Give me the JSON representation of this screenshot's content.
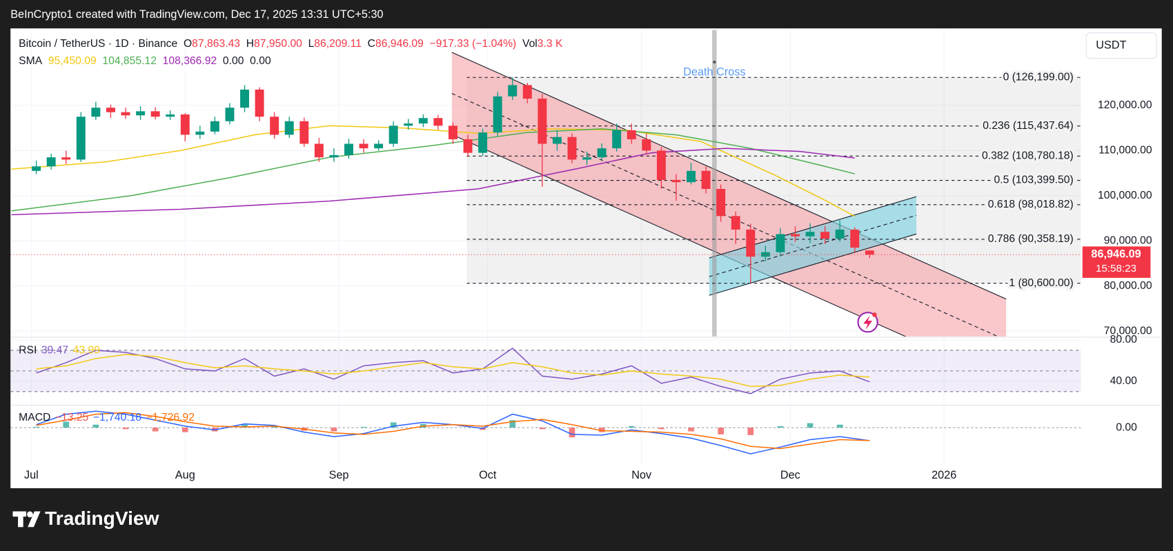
{
  "top_bar": {
    "text": "BeInCrypto1 created with TradingView.com, Dec 17, 2025 13:31 UTC+5:30"
  },
  "footer": {
    "logo_text": "TradingView"
  },
  "chart_data": [
    {
      "type": "candlestick",
      "title": "Bitcoin / TetherUS · 1D · Binance",
      "currency": "USDT",
      "up_color": "#089981",
      "down_color": "#f23645",
      "ohlc_legend": [
        {
          "key": "O",
          "text": "87,863.43"
        },
        {
          "key": "H",
          "text": "87,950.00"
        },
        {
          "key": "L",
          "text": "86,209.11"
        },
        {
          "key": "C",
          "text": "86,946.09"
        }
      ],
      "change": "−917.33 (−1.04%)",
      "volume": {
        "key": "Vol",
        "text": "3.3 K"
      },
      "xlim": [
        -4.2,
        211.6
      ],
      "xticks": [
        {
          "value": 0,
          "label": "Jul"
        },
        {
          "value": 31,
          "label": "Aug"
        },
        {
          "value": 62,
          "label": "Sep"
        },
        {
          "value": 92,
          "label": "Oct"
        },
        {
          "value": 123,
          "label": "Nov"
        },
        {
          "value": 153,
          "label": "Dec"
        },
        {
          "value": 184,
          "label": "2026"
        }
      ],
      "ylim": [
        68840,
        136720
      ],
      "yticks": [
        {
          "value": 70000,
          "label": "70,000.00"
        },
        {
          "value": 80000,
          "label": "80,000.00"
        },
        {
          "value": 90000,
          "label": "90,000.00"
        },
        {
          "value": 100000,
          "label": "100,000.00"
        },
        {
          "value": 110000,
          "label": "110,000.00"
        },
        {
          "value": 120000,
          "label": "120,000.00"
        }
      ],
      "grid": true,
      "x": [
        1,
        4,
        7,
        10,
        13,
        16,
        19,
        22,
        25,
        28,
        31,
        34,
        37,
        40,
        43,
        46,
        49,
        52,
        55,
        58,
        61,
        64,
        67,
        70,
        73,
        76,
        79,
        82,
        85,
        88,
        91,
        94,
        97,
        100,
        103,
        106,
        109,
        112,
        115,
        118,
        121,
        124,
        127,
        130,
        133,
        136,
        139,
        142,
        145,
        148,
        151,
        154,
        157,
        160,
        163,
        166,
        169
      ],
      "open": [
        105500,
        106500,
        108500,
        108000,
        117500,
        119500,
        118500,
        117800,
        118700,
        117500,
        118000,
        113500,
        114200,
        116500,
        119500,
        123500,
        117500,
        113500,
        116500,
        111500,
        108500,
        109000,
        111500,
        110500,
        111500,
        115500,
        116000,
        117200,
        115500,
        112500,
        109500,
        114000,
        122000,
        124500,
        121500,
        111500,
        113000,
        108000,
        108500,
        110500,
        114500,
        112500,
        110000,
        103500,
        103000,
        105500,
        101500,
        95500,
        92500,
        86500,
        87500,
        91500,
        91000,
        92000,
        90500,
        92500,
        87863.43
      ],
      "high": [
        107800,
        109300,
        110000,
        118500,
        120800,
        120200,
        119500,
        119800,
        119600,
        118900,
        118300,
        115500,
        117500,
        120500,
        124500,
        124000,
        118500,
        117500,
        117300,
        112800,
        110500,
        112600,
        112500,
        112300,
        116500,
        117000,
        118000,
        117900,
        116200,
        113500,
        114800,
        123000,
        126199,
        125000,
        122500,
        114500,
        113800,
        109800,
        111600,
        116000,
        116000,
        113800,
        110800,
        104800,
        107300,
        106500,
        102500,
        96500,
        93800,
        88900,
        92800,
        93200,
        93900,
        93300,
        94500,
        93000,
        87950
      ],
      "low": [
        104800,
        105800,
        107000,
        107500,
        116800,
        117200,
        117000,
        116800,
        116900,
        116800,
        112000,
        112600,
        113600,
        115800,
        118500,
        116500,
        112600,
        112800,
        110800,
        107500,
        107500,
        108200,
        109500,
        110000,
        110800,
        114600,
        115200,
        114600,
        111500,
        108600,
        108800,
        113200,
        121200,
        120500,
        102000,
        110000,
        107200,
        106800,
        107800,
        109800,
        111500,
        109200,
        101500,
        98900,
        102500,
        100500,
        94200,
        89300,
        80600,
        85500,
        86500,
        89800,
        89500,
        89300,
        89800,
        87500,
        86209.11
      ],
      "close": [
        106500,
        108500,
        108000,
        117500,
        119500,
        118500,
        117800,
        118700,
        117500,
        118000,
        113500,
        114200,
        116500,
        119500,
        123500,
        117500,
        113500,
        116500,
        111500,
        108500,
        109000,
        111500,
        110500,
        111500,
        115500,
        116000,
        117200,
        115500,
        112500,
        109500,
        114000,
        122000,
        124500,
        121500,
        111500,
        113000,
        108000,
        108500,
        110500,
        114500,
        112500,
        110000,
        103500,
        103000,
        105500,
        101500,
        95500,
        92500,
        86500,
        87500,
        91500,
        91000,
        92000,
        90500,
        92500,
        88500,
        86946.09
      ],
      "sma": {
        "label": "SMA",
        "extra_labels": [
          "0.00",
          "0.00"
        ],
        "lines": [
          {
            "color": "#f2c811",
            "x": [
              -4,
              15,
              30,
              45,
              60,
              75,
              90,
              105,
              120,
              135,
              150,
              160,
              166
            ],
            "values": [
              105900,
              107500,
              110000,
              113500,
              115500,
              115000,
              113800,
              114800,
              114500,
              112000,
              104500,
              99000,
              95450.09
            ],
            "value_label": "95,450.09"
          },
          {
            "color": "#4caf50",
            "x": [
              -4,
              20,
              40,
              60,
              80,
              100,
              115,
              130,
              145,
              160,
              166
            ],
            "values": [
              96650,
              100000,
              104000,
              108500,
              111000,
              114000,
              114800,
              113500,
              110500,
              106500,
              104855.12
            ],
            "value_label": "104,855.12"
          },
          {
            "color": "#9c27b0",
            "x": [
              -4,
              30,
              60,
              90,
              110,
              125,
              140,
              155,
              166
            ],
            "values": [
              95800,
              97000,
              98800,
              101500,
              106000,
              109500,
              110500,
              109800,
              108366.92
            ],
            "value_label": "108,366.92"
          }
        ]
      },
      "fib_levels": [
        {
          "value": 126199,
          "label": "0 (126,199.00)"
        },
        {
          "value": 115437.64,
          "label": "0.236 (115,437.64)"
        },
        {
          "value": 108780.18,
          "label": "0.382 (108,780.18)"
        },
        {
          "value": 103399.5,
          "label": "0.5 (103,399.50)"
        },
        {
          "value": 98018.82,
          "label": "0.618 (98,018.82)"
        },
        {
          "value": 90358.19,
          "label": "0.786 (90,358.19)"
        },
        {
          "value": 80600,
          "label": "1 (80,600.00)"
        }
      ],
      "death_cross": {
        "label": "Death Cross"
      },
      "last_price": {
        "value": 86946.09,
        "label": "86,946.09",
        "countdown": "15:58:23"
      }
    },
    {
      "type": "line",
      "label": "RSI",
      "xlim": [
        -4.2,
        211.6
      ],
      "ylim": [
        17.5,
        82
      ],
      "yticks": [
        {
          "value": 80,
          "label": "80.00"
        },
        {
          "value": 40,
          "label": "40.00"
        }
      ],
      "bands": [
        70,
        50,
        30
      ],
      "x": [
        1,
        7,
        13,
        19,
        25,
        31,
        37,
        43,
        49,
        55,
        61,
        67,
        73,
        79,
        85,
        91,
        97,
        103,
        109,
        115,
        121,
        127,
        133,
        139,
        145,
        151,
        157,
        163,
        169
      ],
      "series": [
        {
          "color": "#7e57c2",
          "values": [
            48,
            58,
            70,
            68,
            62,
            52,
            50,
            62,
            45,
            52,
            42,
            55,
            58,
            60,
            48,
            52,
            72,
            45,
            42,
            47,
            55,
            38,
            44,
            35,
            28,
            42,
            48,
            50,
            39.47
          ],
          "value_label": "39.47"
        },
        {
          "color": "#f2c811",
          "values": [
            52,
            55,
            62,
            66,
            64,
            58,
            53,
            55,
            52,
            50,
            47,
            50,
            54,
            58,
            54,
            52,
            58,
            54,
            48,
            46,
            50,
            47,
            45,
            42,
            35,
            36,
            42,
            46,
            43.99
          ],
          "value_label": "43.99"
        }
      ]
    },
    {
      "type": "line",
      "label": "MACD",
      "xlim": [
        -4.2,
        211.6
      ],
      "ylim": [
        -5000,
        3000
      ],
      "yticks": [
        {
          "value": 0,
          "label": "0.00"
        }
      ],
      "x": [
        1,
        7,
        13,
        19,
        25,
        31,
        37,
        43,
        49,
        55,
        61,
        67,
        73,
        79,
        85,
        91,
        97,
        103,
        109,
        115,
        121,
        127,
        133,
        139,
        145,
        151,
        157,
        163,
        169
      ],
      "histogram": {
        "up_color": "#26a69a",
        "down_color": "#ef5350",
        "values": [
          100,
          800,
          400,
          -200,
          -500,
          -600,
          -500,
          400,
          100,
          -400,
          -500,
          100,
          700,
          500,
          0,
          -300,
          1000,
          -200,
          -1300,
          -600,
          200,
          -200,
          -500,
          -900,
          -1000,
          200,
          600,
          400,
          -13.25
        ],
        "value_label": "−13.25"
      },
      "series": [
        {
          "color": "#2962ff",
          "values": [
            400,
            1800,
            2200,
            1800,
            1000,
            200,
            -300,
            500,
            300,
            -600,
            -1200,
            -800,
            200,
            700,
            400,
            -100,
            1800,
            900,
            -900,
            -1000,
            -300,
            -800,
            -1400,
            -2400,
            -3500,
            -2600,
            -1600,
            -1200,
            -1740.18
          ],
          "value_label": "−1,740.18"
        },
        {
          "color": "#ff6d00",
          "values": [
            300,
            1000,
            1800,
            2000,
            1500,
            800,
            200,
            100,
            200,
            -200,
            -700,
            -900,
            -500,
            200,
            400,
            200,
            800,
            1100,
            400,
            -400,
            -500,
            -600,
            -900,
            -1500,
            -2500,
            -2800,
            -2200,
            -1600,
            -1726.92
          ],
          "value_label": "−1,726.92"
        }
      ]
    }
  ]
}
